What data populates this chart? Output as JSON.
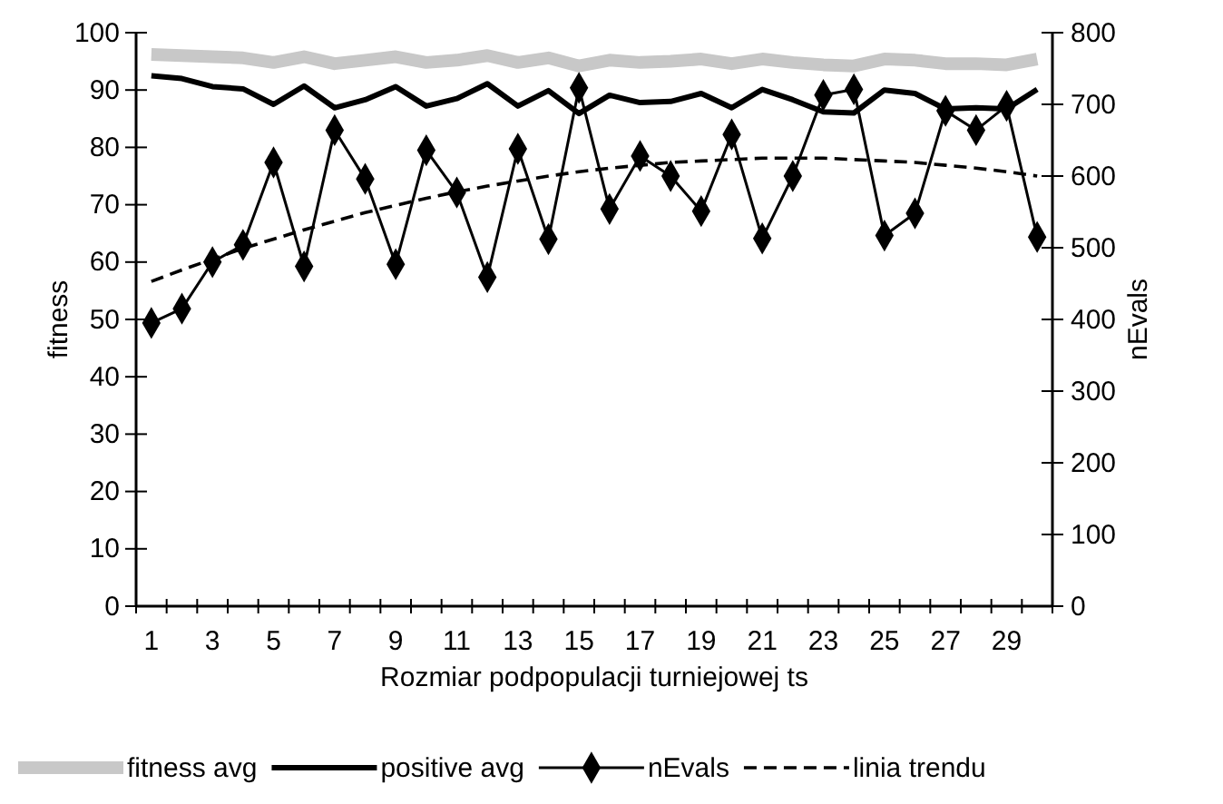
{
  "chart_data": {
    "type": "line",
    "xlabel": "Rozmiar podpopulacji turniejowej ts",
    "ylabel": "fitness",
    "y2label": "nEvals",
    "x": [
      1,
      2,
      3,
      4,
      5,
      6,
      7,
      8,
      9,
      10,
      11,
      12,
      13,
      14,
      15,
      16,
      17,
      18,
      19,
      20,
      21,
      22,
      23,
      24,
      25,
      26,
      27,
      28,
      29,
      30
    ],
    "xlim": [
      0.5,
      30.5
    ],
    "xticks": [
      {
        "value": 0.5,
        "label": null
      },
      1,
      {
        "value": 1.5,
        "label": null
      },
      {
        "value": 2.5,
        "label": null
      },
      3,
      {
        "value": 3.5,
        "label": null
      },
      {
        "value": 4.5,
        "label": null
      },
      5,
      {
        "value": 5.5,
        "label": null
      },
      {
        "value": 6.5,
        "label": null
      },
      7,
      {
        "value": 7.5,
        "label": null
      },
      {
        "value": 8.5,
        "label": null
      },
      9,
      {
        "value": 9.5,
        "label": null
      },
      {
        "value": 10.5,
        "label": null
      },
      11,
      {
        "value": 11.5,
        "label": null
      },
      {
        "value": 12.5,
        "label": null
      },
      13,
      {
        "value": 13.5,
        "label": null
      },
      {
        "value": 14.5,
        "label": null
      },
      15,
      {
        "value": 15.5,
        "label": null
      },
      {
        "value": 16.5,
        "label": null
      },
      17,
      {
        "value": 17.5,
        "label": null
      },
      {
        "value": 18.5,
        "label": null
      },
      19,
      {
        "value": 19.5,
        "label": null
      },
      {
        "value": 20.5,
        "label": null
      },
      21,
      {
        "value": 21.5,
        "label": null
      },
      {
        "value": 22.5,
        "label": null
      },
      23,
      {
        "value": 23.5,
        "label": null
      },
      {
        "value": 24.5,
        "label": null
      },
      25,
      {
        "value": 25.5,
        "label": null
      },
      {
        "value": 26.5,
        "label": null
      },
      27,
      {
        "value": 27.5,
        "label": null
      },
      {
        "value": 28.5,
        "label": null
      },
      29,
      {
        "value": 29.5,
        "label": null
      },
      {
        "value": 30.5,
        "label": null
      }
    ],
    "ylim": [
      0,
      100
    ],
    "yticks": [
      0,
      10,
      20,
      30,
      40,
      50,
      60,
      70,
      80,
      90,
      100
    ],
    "y2lim": [
      0,
      800
    ],
    "y2ticks": [
      0,
      100,
      200,
      300,
      400,
      500,
      600,
      700,
      800
    ],
    "grid": false,
    "legend": "bottom",
    "series": [
      {
        "name": "fitness avg",
        "color": "#c8c8c8",
        "marker": "none",
        "line_style": "solid",
        "values": [
          96.2,
          96.0,
          95.8,
          95.6,
          94.8,
          95.8,
          94.6,
          95.2,
          95.8,
          94.8,
          95.2,
          96.0,
          94.8,
          95.6,
          94.2,
          95.2,
          94.8,
          95.0,
          95.4,
          94.6,
          95.4,
          94.8,
          94.4,
          94.2,
          95.4,
          95.2,
          94.6,
          94.6,
          94.4,
          95.4
        ]
      },
      {
        "name": "positive avg",
        "color": "#000000",
        "marker": "none",
        "line_style": "solid",
        "values": [
          92.5,
          92.0,
          90.6,
          90.2,
          87.5,
          90.7,
          86.9,
          88.3,
          90.6,
          87.2,
          88.5,
          91.1,
          87.2,
          89.9,
          85.9,
          89.1,
          87.8,
          88.0,
          89.4,
          86.9,
          90.1,
          88.3,
          86.2,
          86.0,
          90.0,
          89.4,
          86.7,
          86.9,
          86.7,
          90.1
        ]
      },
      {
        "name": "nEvals",
        "color": "#000000",
        "axis": "y2",
        "marker": "diamond",
        "line_style": "solid",
        "values": [
          395,
          415,
          480,
          504,
          619,
          474,
          664,
          596,
          477,
          636,
          577,
          459,
          638,
          512,
          723,
          554,
          628,
          600,
          551,
          658,
          513,
          600,
          713,
          721,
          517,
          548,
          691,
          664,
          698,
          515
        ]
      },
      {
        "name": "linia trendu",
        "color": "#000000",
        "axis": "y2",
        "marker": "none",
        "line_style": "dashed",
        "values": [
          453,
          469,
          484,
          499,
          512,
          525,
          537,
          549,
          559,
          569,
          578,
          586,
          593,
          600,
          606,
          611,
          615,
          619,
          621,
          623,
          625,
          625,
          625,
          623,
          621,
          619,
          615,
          611,
          606,
          600
        ]
      }
    ]
  }
}
